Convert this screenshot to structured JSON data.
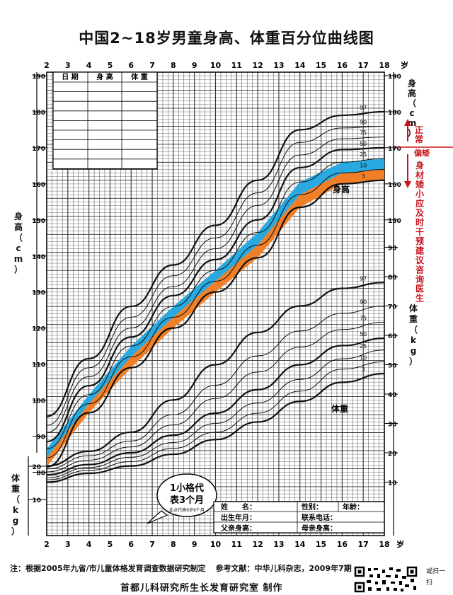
{
  "title": "中国2~18岁男童身高、体重百分位曲线图",
  "age_unit": "岁",
  "left_height_label": "身高（cm）",
  "left_weight_label": "体重（kg）",
  "right_height_label": "身高（cm）",
  "right_weight_label": "体重（kg）",
  "height_curve_label": "身高",
  "weight_curve_label": "体重",
  "annotation": {
    "normal": "正常",
    "short": "偏矮",
    "advice": "身材矮小应及时干预建议咨询医生"
  },
  "record_table": {
    "headers": [
      "日 期",
      "身 高",
      "体 重"
    ]
  },
  "callout": {
    "main": "1小格代表3个月",
    "sub": "此点代表6岁9个月"
  },
  "info_box": {
    "name": "姓　　名：",
    "gender": "性别：",
    "age": "年龄：",
    "birth": "出生年月：",
    "phone": "联系电话：",
    "father": "父亲身高：",
    "mother": "母亲身高："
  },
  "footer": {
    "note": "注：根据2005年九省/市儿童体格发育调查数据研究制定",
    "reference": "参考文献：中华儿科杂志，2009年7期",
    "producer": "首都儿科研究所生长发育研究室 制作",
    "scan": "或扫一扫"
  },
  "colors": {
    "band_blue": "#29a9df",
    "band_orange": "#f07f27",
    "red_text": "#c8141e",
    "grid": "#333333"
  },
  "chart_data": [
    {
      "type": "line",
      "name_key": "height",
      "x_label": "岁",
      "x_ticks": [
        2,
        3,
        4,
        5,
        6,
        7,
        8,
        9,
        10,
        11,
        12,
        13,
        14,
        15,
        16,
        17,
        18
      ],
      "x": [
        2,
        4,
        6,
        8,
        10,
        12,
        14,
        16,
        18
      ],
      "xlim": [
        2,
        18
      ],
      "ylim_left": [
        80,
        190
      ],
      "ylim_right": [
        150,
        190
      ],
      "left_ticks": [
        80,
        90,
        100,
        110,
        120,
        130,
        140,
        150,
        160,
        170,
        180,
        190
      ],
      "right_ticks": [
        150,
        160,
        170,
        180,
        190
      ],
      "series": [
        {
          "name": "3",
          "values": [
            81.5,
            96.5,
            109,
            120,
            130,
            139.5,
            153.5,
            160,
            161
          ]
        },
        {
          "name": "10",
          "values": [
            84,
            99,
            112,
            123,
            133,
            143,
            157,
            163,
            164
          ]
        },
        {
          "name": "25",
          "values": [
            86.5,
            101.5,
            115,
            126,
            136,
            146.5,
            160.5,
            166,
            167
          ]
        },
        {
          "name": "50",
          "values": [
            88.5,
            104,
            117.5,
            129,
            139,
            150,
            164.5,
            169.5,
            170
          ]
        },
        {
          "name": "75",
          "values": [
            91,
            106.5,
            120,
            131.5,
            142,
            154,
            168,
            172.5,
            173
          ]
        },
        {
          "name": "90",
          "values": [
            93,
            109,
            123,
            134.5,
            145,
            157.5,
            171.5,
            175.5,
            176
          ]
        },
        {
          "name": "97",
          "values": [
            95.5,
            111.5,
            126,
            137.5,
            148.5,
            161,
            175,
            179,
            180
          ]
        }
      ]
    },
    {
      "type": "line",
      "name_key": "weight",
      "x": [
        2,
        4,
        6,
        8,
        10,
        12,
        14,
        16,
        18
      ],
      "xlim": [
        2,
        18
      ],
      "ylim_left": [
        5,
        25
      ],
      "ylim_right": [
        0,
        90
      ],
      "left_ticks": [
        10,
        20
      ],
      "right_ticks": [
        10,
        20,
        30,
        40,
        50,
        60,
        70,
        80,
        90
      ],
      "series": [
        {
          "name": "3",
          "values": [
            10,
            13,
            15.5,
            19.5,
            24.5,
            30.5,
            37.5,
            44,
            47
          ]
        },
        {
          "name": "10",
          "values": [
            10.8,
            14,
            17,
            21.5,
            27,
            33.5,
            41,
            48.5,
            51
          ]
        },
        {
          "name": "25",
          "values": [
            11.5,
            15,
            18.5,
            23.5,
            30,
            37,
            45,
            52,
            55
          ]
        },
        {
          "name": "50",
          "values": [
            12.5,
            16,
            20,
            26,
            33.5,
            41.5,
            50,
            56.5,
            59
          ]
        },
        {
          "name": "75",
          "values": [
            13.5,
            17.5,
            22,
            29.5,
            38.5,
            47.5,
            56,
            62,
            64.5
          ]
        },
        {
          "name": "90",
          "values": [
            14.5,
            19,
            24,
            33,
            43,
            53,
            61.5,
            67.5,
            70
          ]
        },
        {
          "name": "97",
          "values": [
            15.5,
            20.5,
            27,
            38,
            50,
            61,
            70,
            76,
            78
          ]
        }
      ]
    }
  ]
}
